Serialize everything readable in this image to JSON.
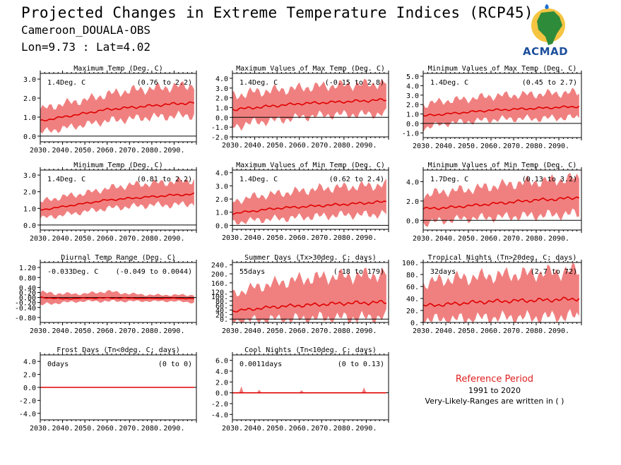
{
  "header": {
    "title": "Projected Changes in Extreme Temperature Indices (RCP45)",
    "station": "Cameroon_DOUALA-OBS",
    "coords": "Lon=9.73 : Lat=4.02"
  },
  "logo": {
    "text": "ACMAD",
    "icon": "africa-map-logo-icon"
  },
  "legend": {
    "title": "Reference Period",
    "period": "1991 to 2020",
    "note": "Very-Likely-Ranges are written in ( )"
  },
  "colors": {
    "band": "#f08080",
    "line": "#e00000",
    "axis": "#000000"
  },
  "chart_data": [
    {
      "type": "area",
      "title": "Maximum Temp (Deg. C)",
      "value_text": "1.4Deg. C",
      "range_text": "(0.76 to 2.2)",
      "xlim": [
        2030,
        2100
      ],
      "ylim": [
        -0.3,
        3.3
      ],
      "yticks": [
        0.0,
        1.0,
        2.0,
        3.0
      ],
      "ytick_labels": [
        "0.0",
        "1.0",
        "2.0",
        "3.0"
      ],
      "xticks": [
        2030,
        2040,
        2050,
        2060,
        2070,
        2080,
        2090
      ],
      "xtick_labels": [
        "2030.",
        "2040.",
        "2050.",
        "2060.",
        "2070.",
        "2080.",
        "2090."
      ],
      "zero_line": 0,
      "x": [
        2030,
        2040,
        2050,
        2060,
        2070,
        2080,
        2090,
        2099
      ],
      "median": [
        0.8,
        1.0,
        1.2,
        1.4,
        1.5,
        1.6,
        1.7,
        1.75
      ],
      "lower": [
        0.2,
        0.4,
        0.6,
        0.8,
        0.9,
        1.0,
        1.05,
        1.1
      ],
      "upper": [
        1.4,
        1.7,
        1.9,
        2.2,
        2.4,
        2.5,
        2.6,
        2.7
      ]
    },
    {
      "type": "area",
      "title": "Maximum Values of Max Temp (Deg. C)",
      "value_text": "1.4Deg. C",
      "range_text": "(-0.15 to 2.8)",
      "xlim": [
        2030,
        2100
      ],
      "ylim": [
        -2.0,
        4.5
      ],
      "yticks": [
        -2.0,
        -1.0,
        0.0,
        1.0,
        2.0,
        3.0,
        4.0
      ],
      "ytick_labels": [
        "-2.0",
        "-1.0",
        "0.0",
        "1.0",
        "2.0",
        "3.0",
        "4.0"
      ],
      "xticks": [
        2030,
        2040,
        2050,
        2060,
        2070,
        2080,
        2090
      ],
      "xtick_labels": [
        "2030.",
        "2040.",
        "2050.",
        "2060.",
        "2070.",
        "2080.",
        "2090."
      ],
      "zero_line": 0,
      "x": [
        2030,
        2040,
        2050,
        2060,
        2070,
        2080,
        2090,
        2099
      ],
      "median": [
        0.8,
        1.0,
        1.2,
        1.4,
        1.5,
        1.6,
        1.7,
        1.8
      ],
      "lower": [
        -1.0,
        -0.5,
        -0.3,
        0.0,
        0.2,
        0.3,
        0.3,
        0.4
      ],
      "upper": [
        2.2,
        2.6,
        2.8,
        3.0,
        3.2,
        3.3,
        3.4,
        3.5
      ]
    },
    {
      "type": "area",
      "title": "Minimum Values of Max Temp (Deg. C)",
      "value_text": "1.4Deg. C",
      "range_text": "(0.45 to 2.7)",
      "xlim": [
        2030,
        2100
      ],
      "ylim": [
        -1.5,
        5.3
      ],
      "yticks": [
        -1.0,
        0.0,
        1.0,
        2.0,
        3.0,
        4.0,
        5.0
      ],
      "ytick_labels": [
        "-1.0",
        "0.0",
        "1.0",
        "2.0",
        "3.0",
        "4.0",
        "5.0"
      ],
      "xticks": [
        2030,
        2040,
        2050,
        2060,
        2070,
        2080,
        2090
      ],
      "xtick_labels": [
        "2030.",
        "2040.",
        "2050.",
        "2060.",
        "2070.",
        "2080.",
        "2090."
      ],
      "zero_line": 0,
      "x": [
        2030,
        2040,
        2050,
        2060,
        2070,
        2080,
        2090,
        2099
      ],
      "median": [
        0.8,
        1.0,
        1.2,
        1.4,
        1.5,
        1.6,
        1.7,
        1.8
      ],
      "lower": [
        -0.5,
        0.0,
        0.2,
        0.4,
        0.5,
        0.5,
        0.6,
        0.6
      ],
      "upper": [
        2.0,
        2.4,
        2.6,
        2.9,
        3.0,
        3.1,
        3.2,
        3.3
      ]
    },
    {
      "type": "area",
      "title": "Minimum Temp (Deg. C)",
      "value_text": "1.4Deg. C",
      "range_text": "(0.81 to 2.2)",
      "xlim": [
        2030,
        2100
      ],
      "ylim": [
        -0.3,
        3.3
      ],
      "yticks": [
        0.0,
        1.0,
        2.0,
        3.0
      ],
      "ytick_labels": [
        "0.0",
        "1.0",
        "2.0",
        "3.0"
      ],
      "xticks": [
        2030,
        2040,
        2050,
        2060,
        2070,
        2080,
        2090
      ],
      "xtick_labels": [
        "2030.",
        "2040.",
        "2050.",
        "2060.",
        "2070.",
        "2080.",
        "2090."
      ],
      "zero_line": 0,
      "x": [
        2030,
        2040,
        2050,
        2060,
        2070,
        2080,
        2090,
        2099
      ],
      "median": [
        0.9,
        1.1,
        1.3,
        1.5,
        1.6,
        1.7,
        1.8,
        1.85
      ],
      "lower": [
        0.4,
        0.6,
        0.8,
        1.0,
        1.1,
        1.2,
        1.2,
        1.3
      ],
      "upper": [
        1.4,
        1.7,
        1.9,
        2.2,
        2.4,
        2.5,
        2.6,
        2.7
      ]
    },
    {
      "type": "area",
      "title": "Maximum Values of Min Temp (Deg. C)",
      "value_text": "1.4Deg. C",
      "range_text": "(0.62 to 2.4)",
      "xlim": [
        2030,
        2100
      ],
      "ylim": [
        -0.3,
        4.2
      ],
      "yticks": [
        0.0,
        1.0,
        2.0,
        3.0,
        4.0
      ],
      "ytick_labels": [
        "0.0",
        "1.0",
        "2.0",
        "3.0",
        "4.0"
      ],
      "xticks": [
        2030,
        2040,
        2050,
        2060,
        2070,
        2080,
        2090
      ],
      "xtick_labels": [
        "2030.",
        "2040.",
        "2050.",
        "2060.",
        "2070.",
        "2080.",
        "2090."
      ],
      "zero_line": 0,
      "x": [
        2030,
        2040,
        2050,
        2060,
        2070,
        2080,
        2090,
        2099
      ],
      "median": [
        0.9,
        1.1,
        1.3,
        1.4,
        1.5,
        1.6,
        1.7,
        1.8
      ],
      "lower": [
        0.2,
        0.4,
        0.5,
        0.6,
        0.7,
        0.8,
        0.8,
        0.9
      ],
      "upper": [
        1.8,
        2.2,
        2.4,
        2.6,
        2.8,
        2.9,
        3.0,
        3.1
      ]
    },
    {
      "type": "area",
      "title": "Minimum Values of Min Temp (Deg. C)",
      "value_text": "1.7Deg. C",
      "range_text": "(0.13 to 3.2)",
      "xlim": [
        2030,
        2100
      ],
      "ylim": [
        -1.0,
        5.2
      ],
      "yticks": [
        0.0,
        2.0,
        4.0
      ],
      "ytick_labels": [
        "0.0",
        "2.0",
        "4.0"
      ],
      "xticks": [
        2030,
        2040,
        2050,
        2060,
        2070,
        2080,
        2090
      ],
      "xtick_labels": [
        "2030.",
        "2040.",
        "2050.",
        "2060.",
        "2070.",
        "2080.",
        "2090."
      ],
      "zero_line": 0,
      "x": [
        2030,
        2040,
        2050,
        2060,
        2070,
        2080,
        2090,
        2099
      ],
      "median": [
        1.2,
        1.3,
        1.5,
        1.7,
        1.9,
        2.1,
        2.2,
        2.4
      ],
      "lower": [
        -0.3,
        0.0,
        0.2,
        0.3,
        0.4,
        0.5,
        0.6,
        0.7
      ],
      "upper": [
        2.6,
        3.0,
        3.2,
        3.5,
        3.8,
        4.0,
        4.2,
        4.4
      ]
    },
    {
      "type": "area",
      "title": "Diurnal Temp Range (Deg. C)",
      "value_text": "-0.033Deg. C",
      "range_text": "(-0.049 to 0.0044)",
      "xlim": [
        2030,
        2100
      ],
      "ylim": [
        -1.0,
        1.4
      ],
      "yticks": [
        -0.8,
        -0.4,
        -0.2,
        0.0,
        0.2,
        0.4,
        0.8,
        1.2
      ],
      "ytick_labels": [
        "-0.80",
        "-0.40",
        "-0.20",
        "0.00",
        "0.20",
        "0.40",
        "0.80",
        "1.20"
      ],
      "xticks": [
        2030,
        2040,
        2050,
        2060,
        2070,
        2080,
        2090
      ],
      "xtick_labels": [
        "2030.",
        "2040.",
        "2050.",
        "2060.",
        "2070.",
        "2080.",
        "2090."
      ],
      "zero_line": 0,
      "x": [
        2030,
        2040,
        2050,
        2060,
        2070,
        2080,
        2090,
        2099
      ],
      "median": [
        0.0,
        -0.05,
        -0.03,
        -0.02,
        -0.03,
        -0.04,
        -0.03,
        -0.05
      ],
      "lower": [
        -0.3,
        -0.2,
        -0.15,
        -0.15,
        -0.15,
        -0.15,
        -0.15,
        -0.2
      ],
      "upper": [
        0.2,
        0.15,
        0.15,
        0.25,
        0.15,
        0.1,
        0.1,
        0.1
      ]
    },
    {
      "type": "area",
      "title": "Summer Days (Tx>30deg. C; days)",
      "value_text": "55days",
      "range_text": "(-18 to 179)",
      "xlim": [
        2030,
        2100
      ],
      "ylim": [
        -15,
        250
      ],
      "yticks": [
        0,
        20,
        40,
        60,
        80,
        100,
        120,
        160,
        200,
        240
      ],
      "ytick_labels": [
        "0.",
        "20.",
        "40.",
        "60.",
        "80.",
        "100.",
        "120.",
        "160.",
        "200.",
        "240."
      ],
      "xticks": [
        2030,
        2040,
        2050,
        2060,
        2070,
        2080,
        2090
      ],
      "xtick_labels": [
        "2030.",
        "2040.",
        "2050.",
        "2060.",
        "2070.",
        "2080.",
        "2090."
      ],
      "zero_line": 0,
      "x": [
        2030,
        2040,
        2050,
        2060,
        2070,
        2080,
        2090,
        2099
      ],
      "median": [
        35,
        45,
        55,
        60,
        65,
        70,
        72,
        75
      ],
      "lower": [
        -10,
        -5,
        0,
        0,
        5,
        5,
        5,
        10
      ],
      "upper": [
        110,
        140,
        160,
        175,
        185,
        190,
        195,
        200
      ]
    },
    {
      "type": "area",
      "title": "Tropical Nights (Tn>20deg. C; days)",
      "value_text": "32days",
      "range_text": "(2.7 to 72)",
      "xlim": [
        2030,
        2100
      ],
      "ylim": [
        0,
        100
      ],
      "yticks": [
        0,
        20,
        40,
        60,
        80,
        100
      ],
      "ytick_labels": [
        "0.",
        "20.",
        "40.",
        "60.",
        "80.",
        "100."
      ],
      "xticks": [
        2030,
        2040,
        2050,
        2060,
        2070,
        2080,
        2090
      ],
      "xtick_labels": [
        "2030.",
        "2040.",
        "2050.",
        "2060.",
        "2070.",
        "2080.",
        "2090."
      ],
      "zero_line": 0,
      "x": [
        2030,
        2040,
        2050,
        2060,
        2070,
        2080,
        2090,
        2099
      ],
      "median": [
        28,
        30,
        33,
        35,
        36,
        37,
        38,
        40
      ],
      "lower": [
        5,
        5,
        6,
        8,
        8,
        8,
        10,
        10
      ],
      "upper": [
        65,
        72,
        75,
        78,
        80,
        82,
        84,
        88
      ]
    },
    {
      "type": "area",
      "title": "Frost Days (Tn<0deg. C; days)",
      "value_text": "0days",
      "range_text": "(0 to 0)",
      "xlim": [
        2030,
        2100
      ],
      "ylim": [
        -5,
        5
      ],
      "yticks": [
        -4.0,
        -2.0,
        0.0,
        2.0,
        4.0
      ],
      "ytick_labels": [
        "-4.0",
        "-2.0",
        "0.0",
        "2.0",
        "4.0"
      ],
      "xticks": [
        2030,
        2040,
        2050,
        2060,
        2070,
        2080,
        2090
      ],
      "xtick_labels": [
        "2030.",
        "2040.",
        "2050.",
        "2060.",
        "2070.",
        "2080.",
        "2090."
      ],
      "zero_line": 0,
      "x": [
        2030,
        2099
      ],
      "median": [
        0,
        0
      ],
      "lower": [
        0,
        0
      ],
      "upper": [
        0,
        0
      ]
    },
    {
      "type": "area",
      "title": "Cool Nights (Tn<10deg. C; days)",
      "value_text": "0.0011days",
      "range_text": "(0 to 0.13)",
      "xlim": [
        2030,
        2100
      ],
      "ylim": [
        -5,
        7
      ],
      "yticks": [
        -4.0,
        -2.0,
        0.0,
        2.0,
        4.0,
        6.0
      ],
      "ytick_labels": [
        "-4.0",
        "-2.0",
        "0.0",
        "2.0",
        "4.0",
        "6.0"
      ],
      "xticks": [
        2030,
        2040,
        2050,
        2060,
        2070,
        2080,
        2090
      ],
      "xtick_labels": [
        "2030.",
        "2040.",
        "2050.",
        "2060.",
        "2070.",
        "2080.",
        "2090."
      ],
      "zero_line": 0,
      "x": [
        2030,
        2033,
        2034,
        2035,
        2041,
        2042,
        2043,
        2060,
        2061,
        2062,
        2088,
        2089,
        2090,
        2099
      ],
      "median": [
        0,
        0,
        0,
        0,
        0,
        0,
        0,
        0,
        0,
        0,
        0,
        0,
        0,
        0
      ],
      "lower": [
        0,
        0,
        0,
        0,
        0,
        0,
        0,
        0,
        0,
        0,
        0,
        0,
        0,
        0
      ],
      "upper": [
        0,
        0,
        1.2,
        0,
        0,
        0.6,
        0,
        0,
        0.5,
        0,
        0,
        1.0,
        0,
        0
      ]
    }
  ]
}
